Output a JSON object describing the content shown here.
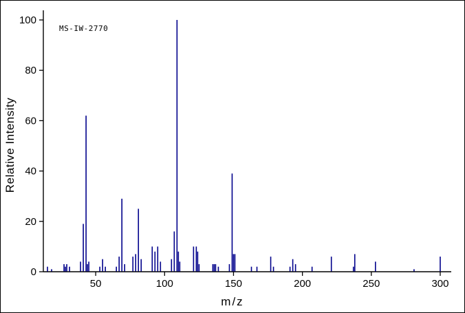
{
  "annotation": "MS-IW-2770",
  "chart_data": {
    "type": "bar",
    "title": "",
    "xlabel": "m/z",
    "ylabel": "Relative Intensity",
    "xlim": [
      12,
      308
    ],
    "ylim": [
      0,
      100
    ],
    "x_ticks": [
      50,
      100,
      150,
      200,
      250,
      300
    ],
    "y_ticks": [
      0,
      20,
      40,
      60,
      80,
      100
    ],
    "grid": false,
    "legend": "none",
    "colors": {
      "peak": "#00008B",
      "axis": "#000000",
      "text": "#000000"
    },
    "peaks": [
      [
        15,
        2
      ],
      [
        18,
        1
      ],
      [
        27,
        3
      ],
      [
        28,
        2
      ],
      [
        29,
        3
      ],
      [
        31,
        2
      ],
      [
        39,
        4
      ],
      [
        41,
        19
      ],
      [
        43,
        62
      ],
      [
        44,
        3
      ],
      [
        45,
        4
      ],
      [
        53,
        2
      ],
      [
        55,
        5
      ],
      [
        57,
        2
      ],
      [
        65,
        2
      ],
      [
        67,
        6
      ],
      [
        69,
        29
      ],
      [
        71,
        3
      ],
      [
        77,
        6
      ],
      [
        79,
        7
      ],
      [
        81,
        25
      ],
      [
        83,
        5
      ],
      [
        91,
        10
      ],
      [
        93,
        8
      ],
      [
        95,
        10
      ],
      [
        97,
        4
      ],
      [
        105,
        5
      ],
      [
        107,
        16
      ],
      [
        109,
        100
      ],
      [
        110,
        8
      ],
      [
        111,
        4
      ],
      [
        121,
        10
      ],
      [
        123,
        10
      ],
      [
        124,
        8
      ],
      [
        125,
        3
      ],
      [
        135,
        3
      ],
      [
        136,
        3
      ],
      [
        137,
        3
      ],
      [
        139,
        2
      ],
      [
        147,
        3
      ],
      [
        149,
        39
      ],
      [
        150,
        7
      ],
      [
        151,
        7
      ],
      [
        163,
        2
      ],
      [
        167,
        2
      ],
      [
        177,
        6
      ],
      [
        179,
        2
      ],
      [
        191,
        2
      ],
      [
        193,
        5
      ],
      [
        195,
        3
      ],
      [
        207,
        2
      ],
      [
        221,
        6
      ],
      [
        237,
        2
      ],
      [
        238,
        7
      ],
      [
        253,
        4
      ],
      [
        281,
        1
      ],
      [
        300,
        6
      ]
    ]
  }
}
